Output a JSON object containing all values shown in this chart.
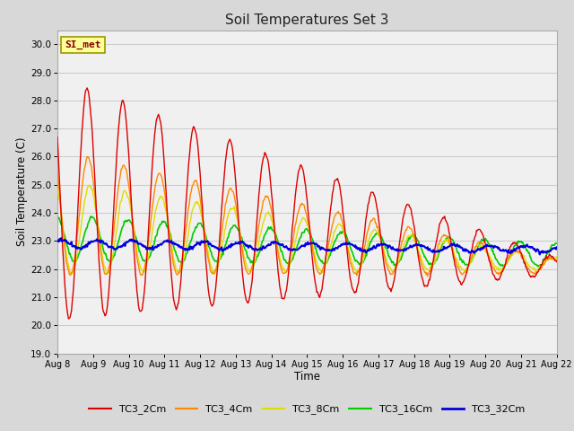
{
  "title": "Soil Temperatures Set 3",
  "xlabel": "Time",
  "ylabel": "Soil Temperature (C)",
  "ylim": [
    19.0,
    30.5
  ],
  "ytick_min": 19.0,
  "ytick_max": 30.0,
  "ytick_step": 1.0,
  "x_labels": [
    "Aug 8",
    "Aug 9",
    "Aug 10",
    "Aug 11",
    "Aug 12",
    "Aug 13",
    "Aug 14",
    "Aug 15",
    "Aug 16",
    "Aug 17",
    "Aug 18",
    "Aug 19",
    "Aug 20",
    "Aug 21",
    "Aug 22"
  ],
  "fig_bg_color": "#d8d8d8",
  "plot_bg_color": "#f0f0f0",
  "series": {
    "TC3_2Cm": {
      "color": "#dd0000",
      "lw": 1.0
    },
    "TC3_4Cm": {
      "color": "#ff8800",
      "lw": 1.0
    },
    "TC3_8Cm": {
      "color": "#dddd00",
      "lw": 1.0
    },
    "TC3_16Cm": {
      "color": "#00cc00",
      "lw": 1.2
    },
    "TC3_32Cm": {
      "color": "#0000dd",
      "lw": 1.5
    }
  },
  "legend_label": "SI_met",
  "legend_bg": "#ffff99",
  "legend_border": "#999900",
  "grid_color": "#cccccc",
  "days": 14
}
